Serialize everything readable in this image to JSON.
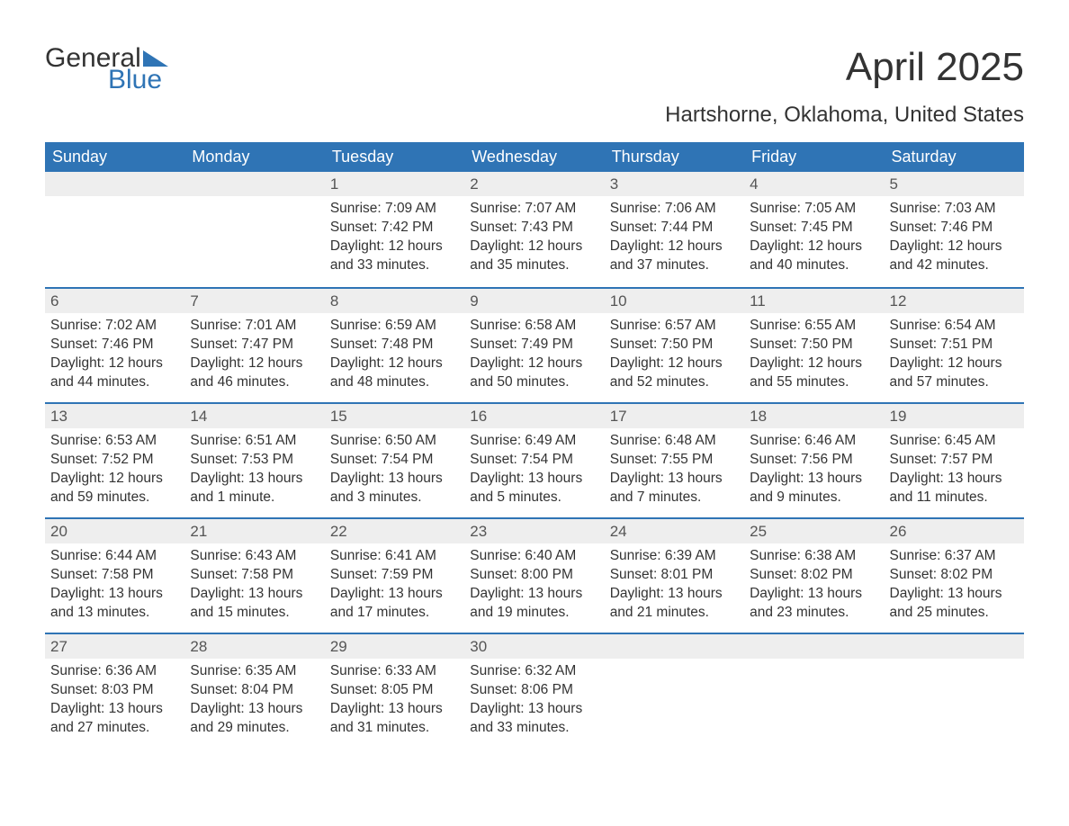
{
  "logo": {
    "line1": "General",
    "line2": "Blue"
  },
  "title": "April 2025",
  "subtitle": "Hartshorne, Oklahoma, United States",
  "colors": {
    "header_bg": "#2f74b5",
    "header_fg": "#ffffff",
    "row_sep": "#2f74b5",
    "daynum_bg": "#eeeeee",
    "text": "#333333",
    "logo_blue": "#2f74b5"
  },
  "weekdays": [
    "Sunday",
    "Monday",
    "Tuesday",
    "Wednesday",
    "Thursday",
    "Friday",
    "Saturday"
  ],
  "weeks": [
    [
      {
        "blank": true
      },
      {
        "blank": true
      },
      {
        "num": "1",
        "sunrise": "Sunrise: 7:09 AM",
        "sunset": "Sunset: 7:42 PM",
        "day1": "Daylight: 12 hours",
        "day2": "and 33 minutes."
      },
      {
        "num": "2",
        "sunrise": "Sunrise: 7:07 AM",
        "sunset": "Sunset: 7:43 PM",
        "day1": "Daylight: 12 hours",
        "day2": "and 35 minutes."
      },
      {
        "num": "3",
        "sunrise": "Sunrise: 7:06 AM",
        "sunset": "Sunset: 7:44 PM",
        "day1": "Daylight: 12 hours",
        "day2": "and 37 minutes."
      },
      {
        "num": "4",
        "sunrise": "Sunrise: 7:05 AM",
        "sunset": "Sunset: 7:45 PM",
        "day1": "Daylight: 12 hours",
        "day2": "and 40 minutes."
      },
      {
        "num": "5",
        "sunrise": "Sunrise: 7:03 AM",
        "sunset": "Sunset: 7:46 PM",
        "day1": "Daylight: 12 hours",
        "day2": "and 42 minutes."
      }
    ],
    [
      {
        "num": "6",
        "sunrise": "Sunrise: 7:02 AM",
        "sunset": "Sunset: 7:46 PM",
        "day1": "Daylight: 12 hours",
        "day2": "and 44 minutes."
      },
      {
        "num": "7",
        "sunrise": "Sunrise: 7:01 AM",
        "sunset": "Sunset: 7:47 PM",
        "day1": "Daylight: 12 hours",
        "day2": "and 46 minutes."
      },
      {
        "num": "8",
        "sunrise": "Sunrise: 6:59 AM",
        "sunset": "Sunset: 7:48 PM",
        "day1": "Daylight: 12 hours",
        "day2": "and 48 minutes."
      },
      {
        "num": "9",
        "sunrise": "Sunrise: 6:58 AM",
        "sunset": "Sunset: 7:49 PM",
        "day1": "Daylight: 12 hours",
        "day2": "and 50 minutes."
      },
      {
        "num": "10",
        "sunrise": "Sunrise: 6:57 AM",
        "sunset": "Sunset: 7:50 PM",
        "day1": "Daylight: 12 hours",
        "day2": "and 52 minutes."
      },
      {
        "num": "11",
        "sunrise": "Sunrise: 6:55 AM",
        "sunset": "Sunset: 7:50 PM",
        "day1": "Daylight: 12 hours",
        "day2": "and 55 minutes."
      },
      {
        "num": "12",
        "sunrise": "Sunrise: 6:54 AM",
        "sunset": "Sunset: 7:51 PM",
        "day1": "Daylight: 12 hours",
        "day2": "and 57 minutes."
      }
    ],
    [
      {
        "num": "13",
        "sunrise": "Sunrise: 6:53 AM",
        "sunset": "Sunset: 7:52 PM",
        "day1": "Daylight: 12 hours",
        "day2": "and 59 minutes."
      },
      {
        "num": "14",
        "sunrise": "Sunrise: 6:51 AM",
        "sunset": "Sunset: 7:53 PM",
        "day1": "Daylight: 13 hours",
        "day2": "and 1 minute."
      },
      {
        "num": "15",
        "sunrise": "Sunrise: 6:50 AM",
        "sunset": "Sunset: 7:54 PM",
        "day1": "Daylight: 13 hours",
        "day2": "and 3 minutes."
      },
      {
        "num": "16",
        "sunrise": "Sunrise: 6:49 AM",
        "sunset": "Sunset: 7:54 PM",
        "day1": "Daylight: 13 hours",
        "day2": "and 5 minutes."
      },
      {
        "num": "17",
        "sunrise": "Sunrise: 6:48 AM",
        "sunset": "Sunset: 7:55 PM",
        "day1": "Daylight: 13 hours",
        "day2": "and 7 minutes."
      },
      {
        "num": "18",
        "sunrise": "Sunrise: 6:46 AM",
        "sunset": "Sunset: 7:56 PM",
        "day1": "Daylight: 13 hours",
        "day2": "and 9 minutes."
      },
      {
        "num": "19",
        "sunrise": "Sunrise: 6:45 AM",
        "sunset": "Sunset: 7:57 PM",
        "day1": "Daylight: 13 hours",
        "day2": "and 11 minutes."
      }
    ],
    [
      {
        "num": "20",
        "sunrise": "Sunrise: 6:44 AM",
        "sunset": "Sunset: 7:58 PM",
        "day1": "Daylight: 13 hours",
        "day2": "and 13 minutes."
      },
      {
        "num": "21",
        "sunrise": "Sunrise: 6:43 AM",
        "sunset": "Sunset: 7:58 PM",
        "day1": "Daylight: 13 hours",
        "day2": "and 15 minutes."
      },
      {
        "num": "22",
        "sunrise": "Sunrise: 6:41 AM",
        "sunset": "Sunset: 7:59 PM",
        "day1": "Daylight: 13 hours",
        "day2": "and 17 minutes."
      },
      {
        "num": "23",
        "sunrise": "Sunrise: 6:40 AM",
        "sunset": "Sunset: 8:00 PM",
        "day1": "Daylight: 13 hours",
        "day2": "and 19 minutes."
      },
      {
        "num": "24",
        "sunrise": "Sunrise: 6:39 AM",
        "sunset": "Sunset: 8:01 PM",
        "day1": "Daylight: 13 hours",
        "day2": "and 21 minutes."
      },
      {
        "num": "25",
        "sunrise": "Sunrise: 6:38 AM",
        "sunset": "Sunset: 8:02 PM",
        "day1": "Daylight: 13 hours",
        "day2": "and 23 minutes."
      },
      {
        "num": "26",
        "sunrise": "Sunrise: 6:37 AM",
        "sunset": "Sunset: 8:02 PM",
        "day1": "Daylight: 13 hours",
        "day2": "and 25 minutes."
      }
    ],
    [
      {
        "num": "27",
        "sunrise": "Sunrise: 6:36 AM",
        "sunset": "Sunset: 8:03 PM",
        "day1": "Daylight: 13 hours",
        "day2": "and 27 minutes."
      },
      {
        "num": "28",
        "sunrise": "Sunrise: 6:35 AM",
        "sunset": "Sunset: 8:04 PM",
        "day1": "Daylight: 13 hours",
        "day2": "and 29 minutes."
      },
      {
        "num": "29",
        "sunrise": "Sunrise: 6:33 AM",
        "sunset": "Sunset: 8:05 PM",
        "day1": "Daylight: 13 hours",
        "day2": "and 31 minutes."
      },
      {
        "num": "30",
        "sunrise": "Sunrise: 6:32 AM",
        "sunset": "Sunset: 8:06 PM",
        "day1": "Daylight: 13 hours",
        "day2": "and 33 minutes."
      },
      {
        "blank": true
      },
      {
        "blank": true
      },
      {
        "blank": true
      }
    ]
  ]
}
